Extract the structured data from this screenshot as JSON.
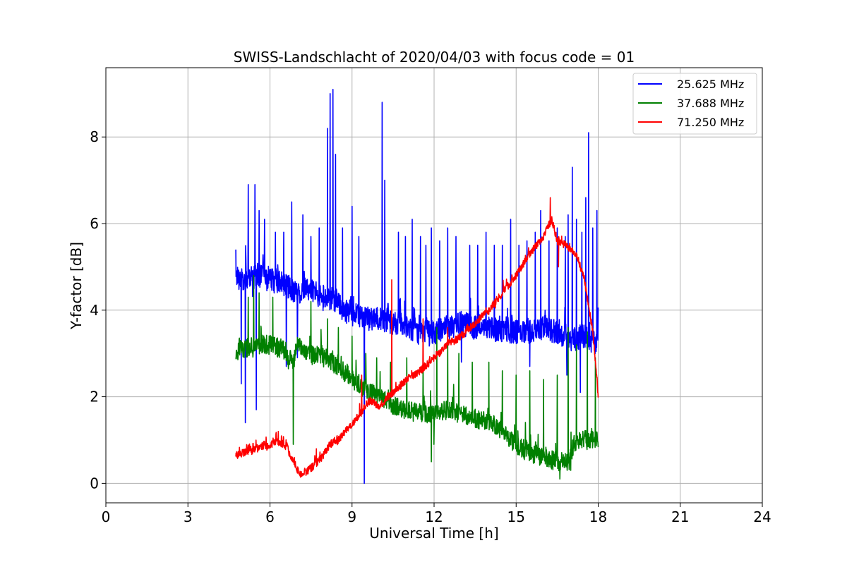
{
  "chart_data": {
    "type": "line",
    "title": "SWISS-Landschlacht of 2020/04/03 with focus code = 01",
    "xlabel": "Universal Time [h]",
    "ylabel": "Y-factor [dB]",
    "xlim": [
      0,
      24
    ],
    "ylim": [
      -0.45,
      9.6
    ],
    "xticks": [
      0,
      3,
      6,
      9,
      12,
      15,
      18,
      21,
      24
    ],
    "yticks": [
      0,
      2,
      4,
      6,
      8
    ],
    "grid": true,
    "legend_position": "top-right",
    "series": [
      {
        "name": "25.625 MHz",
        "color": "#0000ff",
        "x": [
          4.75,
          5.0,
          5.5,
          6.0,
          6.5,
          7.0,
          7.5,
          8.0,
          8.3,
          8.7,
          9.0,
          9.5,
          10.0,
          10.5,
          11.0,
          11.5,
          12.0,
          12.5,
          13.0,
          13.5,
          14.0,
          14.5,
          15.0,
          15.5,
          16.0,
          16.5,
          17.0,
          17.5,
          17.9,
          18.0
        ],
        "y": [
          4.8,
          4.7,
          4.8,
          4.7,
          4.6,
          4.4,
          4.5,
          4.2,
          4.3,
          4.0,
          3.9,
          3.8,
          3.8,
          3.7,
          3.6,
          3.5,
          3.5,
          3.6,
          3.7,
          3.6,
          3.6,
          3.5,
          3.5,
          3.5,
          3.6,
          3.5,
          3.3,
          3.4,
          3.2,
          3.4
        ],
        "spikes": [
          {
            "x": 4.75,
            "y": 5.4
          },
          {
            "x": 4.95,
            "y": 2.3
          },
          {
            "x": 5.1,
            "y": 1.4
          },
          {
            "x": 5.2,
            "y": 6.9
          },
          {
            "x": 5.45,
            "y": 6.9
          },
          {
            "x": 5.5,
            "y": 1.7
          },
          {
            "x": 5.6,
            "y": 6.3
          },
          {
            "x": 5.8,
            "y": 6.1
          },
          {
            "x": 6.2,
            "y": 5.8
          },
          {
            "x": 6.5,
            "y": 5.8
          },
          {
            "x": 6.6,
            "y": 2.7
          },
          {
            "x": 6.8,
            "y": 6.5
          },
          {
            "x": 7.2,
            "y": 6.2
          },
          {
            "x": 7.5,
            "y": 5.7
          },
          {
            "x": 7.8,
            "y": 5.9
          },
          {
            "x": 8.1,
            "y": 8.2
          },
          {
            "x": 8.2,
            "y": 9.0
          },
          {
            "x": 8.3,
            "y": 9.1
          },
          {
            "x": 8.4,
            "y": 7.6
          },
          {
            "x": 8.65,
            "y": 5.9
          },
          {
            "x": 9.0,
            "y": 6.4
          },
          {
            "x": 9.25,
            "y": 5.7
          },
          {
            "x": 9.45,
            "y": 0.0
          },
          {
            "x": 10.1,
            "y": 8.8
          },
          {
            "x": 10.2,
            "y": 7.0
          },
          {
            "x": 10.7,
            "y": 5.8
          },
          {
            "x": 10.95,
            "y": 5.7
          },
          {
            "x": 11.2,
            "y": 6.1
          },
          {
            "x": 11.5,
            "y": 5.7
          },
          {
            "x": 11.7,
            "y": 5.5
          },
          {
            "x": 11.9,
            "y": 5.9
          },
          {
            "x": 12.2,
            "y": 5.6
          },
          {
            "x": 12.5,
            "y": 5.9
          },
          {
            "x": 12.8,
            "y": 5.7
          },
          {
            "x": 13.3,
            "y": 5.5
          },
          {
            "x": 13.6,
            "y": 5.5
          },
          {
            "x": 13.9,
            "y": 5.8
          },
          {
            "x": 14.2,
            "y": 5.5
          },
          {
            "x": 14.5,
            "y": 5.5
          },
          {
            "x": 14.8,
            "y": 6.1
          },
          {
            "x": 15.1,
            "y": 5.5
          },
          {
            "x": 15.4,
            "y": 5.6
          },
          {
            "x": 15.7,
            "y": 5.8
          },
          {
            "x": 15.9,
            "y": 6.3
          },
          {
            "x": 16.2,
            "y": 5.6
          },
          {
            "x": 16.5,
            "y": 5.9
          },
          {
            "x": 16.8,
            "y": 5.7
          },
          {
            "x": 16.9,
            "y": 6.2
          },
          {
            "x": 17.05,
            "y": 7.3
          },
          {
            "x": 17.2,
            "y": 6.1
          },
          {
            "x": 17.4,
            "y": 5.8
          },
          {
            "x": 17.55,
            "y": 6.6
          },
          {
            "x": 17.65,
            "y": 8.1
          },
          {
            "x": 17.8,
            "y": 5.9
          },
          {
            "x": 17.95,
            "y": 6.3
          },
          {
            "x": 17.35,
            "y": 2.1
          },
          {
            "x": 16.85,
            "y": 2.5
          },
          {
            "x": 15.5,
            "y": 2.7
          },
          {
            "x": 13.0,
            "y": 2.8
          },
          {
            "x": 7.0,
            "y": 2.9
          }
        ]
      },
      {
        "name": "37.688 MHz",
        "color": "#008000",
        "x": [
          4.75,
          5.0,
          5.5,
          6.0,
          6.5,
          6.85,
          7.0,
          7.5,
          8.0,
          8.5,
          9.0,
          9.5,
          10.0,
          10.5,
          11.0,
          11.5,
          12.0,
          12.5,
          13.0,
          13.5,
          14.0,
          14.5,
          15.0,
          15.5,
          16.0,
          16.5,
          16.95,
          17.1,
          17.5,
          18.0
        ],
        "y": [
          3.0,
          3.1,
          3.2,
          3.2,
          3.1,
          2.8,
          3.2,
          3.0,
          2.9,
          2.7,
          2.4,
          2.2,
          2.0,
          1.8,
          1.7,
          1.6,
          1.6,
          1.7,
          1.6,
          1.5,
          1.4,
          1.2,
          0.9,
          0.7,
          0.6,
          0.5,
          0.5,
          0.9,
          1.0,
          1.0
        ],
        "spikes": [
          {
            "x": 5.2,
            "y": 4.3
          },
          {
            "x": 5.4,
            "y": 4.8
          },
          {
            "x": 5.6,
            "y": 4.4
          },
          {
            "x": 6.1,
            "y": 4.3
          },
          {
            "x": 6.85,
            "y": 0.9
          },
          {
            "x": 7.5,
            "y": 4.2
          },
          {
            "x": 8.1,
            "y": 3.8
          },
          {
            "x": 8.5,
            "y": 3.6
          },
          {
            "x": 9.0,
            "y": 3.4
          },
          {
            "x": 9.5,
            "y": 3.0
          },
          {
            "x": 9.9,
            "y": 2.9
          },
          {
            "x": 10.4,
            "y": 2.8
          },
          {
            "x": 11.0,
            "y": 2.9
          },
          {
            "x": 11.6,
            "y": 2.8
          },
          {
            "x": 12.1,
            "y": 3.6
          },
          {
            "x": 12.5,
            "y": 3.3
          },
          {
            "x": 12.9,
            "y": 3.0
          },
          {
            "x": 13.4,
            "y": 2.8
          },
          {
            "x": 14.0,
            "y": 2.8
          },
          {
            "x": 14.5,
            "y": 2.6
          },
          {
            "x": 15.0,
            "y": 2.5
          },
          {
            "x": 15.5,
            "y": 2.6
          },
          {
            "x": 16.0,
            "y": 2.4
          },
          {
            "x": 16.5,
            "y": 2.5
          },
          {
            "x": 16.9,
            "y": 3.6
          },
          {
            "x": 17.2,
            "y": 3.2
          },
          {
            "x": 17.6,
            "y": 3.5
          },
          {
            "x": 17.9,
            "y": 2.9
          },
          {
            "x": 11.9,
            "y": 0.5
          },
          {
            "x": 12.0,
            "y": 0.9
          },
          {
            "x": 16.6,
            "y": 0.1
          },
          {
            "x": 17.0,
            "y": 0.3
          }
        ]
      },
      {
        "name": "71.250 MHz",
        "color": "#ff0000",
        "x": [
          4.75,
          5.0,
          5.5,
          6.0,
          6.3,
          6.6,
          6.9,
          7.1,
          7.5,
          7.9,
          8.2,
          8.5,
          8.9,
          9.3,
          9.6,
          10.0,
          10.5,
          11.0,
          11.5,
          12.0,
          12.5,
          13.0,
          13.5,
          14.0,
          14.5,
          15.0,
          15.5,
          16.0,
          16.3,
          16.5,
          16.8,
          17.2,
          17.5,
          17.8,
          18.0
        ],
        "y": [
          0.65,
          0.7,
          0.8,
          0.9,
          0.95,
          0.85,
          0.45,
          0.2,
          0.35,
          0.6,
          0.9,
          1.0,
          1.3,
          1.6,
          1.9,
          1.8,
          2.1,
          2.4,
          2.6,
          2.9,
          3.2,
          3.4,
          3.7,
          4.0,
          4.4,
          4.8,
          5.3,
          5.7,
          6.1,
          5.6,
          5.5,
          5.3,
          4.7,
          3.5,
          2.0
        ],
        "spikes": [
          {
            "x": 6.3,
            "y": 1.2
          },
          {
            "x": 7.7,
            "y": 0.8
          },
          {
            "x": 9.35,
            "y": 2.5
          },
          {
            "x": 10.45,
            "y": 4.7
          },
          {
            "x": 11.6,
            "y": 3.8
          },
          {
            "x": 12.5,
            "y": 3.6
          },
          {
            "x": 14.0,
            "y": 3.9
          },
          {
            "x": 16.25,
            "y": 6.6
          },
          {
            "x": 16.55,
            "y": 5.0
          }
        ]
      }
    ]
  }
}
